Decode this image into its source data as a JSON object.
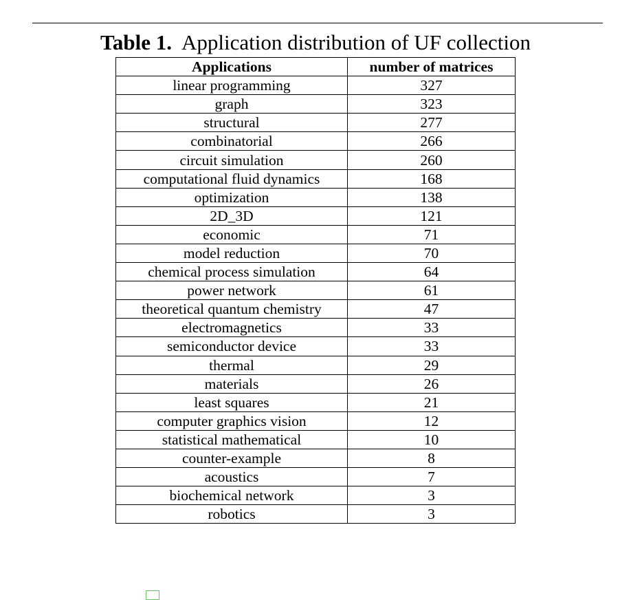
{
  "caption": {
    "label": "Table 1.",
    "text": "Application distribution of UF collection"
  },
  "table": {
    "headers": [
      "Applications",
      "number of matrices"
    ],
    "rows": [
      [
        "linear programming",
        "327"
      ],
      [
        "graph",
        "323"
      ],
      [
        "structural",
        "277"
      ],
      [
        "combinatorial",
        "266"
      ],
      [
        "circuit simulation",
        "260"
      ],
      [
        "computational fluid dynamics",
        "168"
      ],
      [
        "optimization",
        "138"
      ],
      [
        "2D_3D",
        "121"
      ],
      [
        "economic",
        "71"
      ],
      [
        "model reduction",
        "70"
      ],
      [
        "chemical process simulation",
        "64"
      ],
      [
        "power network",
        "61"
      ],
      [
        "theoretical quantum chemistry",
        "47"
      ],
      [
        "electromagnetics",
        "33"
      ],
      [
        "semiconductor device",
        "33"
      ],
      [
        "thermal",
        "29"
      ],
      [
        "materials",
        "26"
      ],
      [
        "least squares",
        "21"
      ],
      [
        "computer graphics vision",
        "12"
      ],
      [
        "statistical mathematical",
        "10"
      ],
      [
        "counter-example",
        "8"
      ],
      [
        "acoustics",
        "7"
      ],
      [
        "biochemical network",
        "3"
      ],
      [
        "robotics",
        "3"
      ]
    ]
  }
}
